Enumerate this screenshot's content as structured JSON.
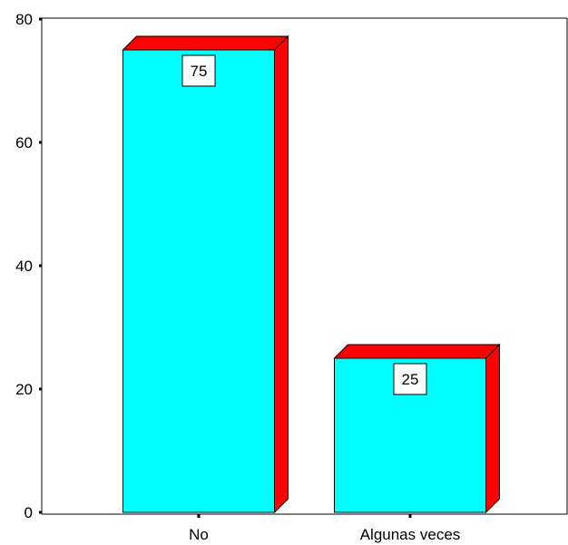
{
  "chart_data": {
    "type": "bar",
    "categories": [
      "No",
      "Algunas veces"
    ],
    "values": [
      75,
      25
    ],
    "data_labels": [
      "75",
      "25"
    ],
    "title": "",
    "xlabel": "",
    "ylabel": "",
    "ylim": [
      0,
      80
    ],
    "yticks": [
      0,
      20,
      40,
      60,
      80
    ],
    "ytick_labels": [
      "0",
      "20",
      "40",
      "60",
      "80"
    ],
    "grid": false,
    "legend": "none",
    "style": "3d",
    "colors": {
      "bar_front": "#00ffff",
      "bar_top_side": "#ff0000",
      "outline": "#000000",
      "label_box": "#ffffff"
    }
  }
}
